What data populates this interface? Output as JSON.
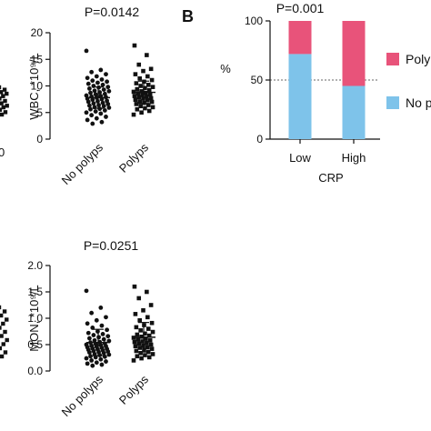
{
  "colors": {
    "ink": "#111111",
    "gridline": "#666666",
    "polyps": "#e8537a",
    "no_polyps": "#7ec3ea"
  },
  "panel_b": {
    "letter": "B"
  },
  "chart_data": [
    {
      "type": "scatter",
      "panel": "partial-left-top",
      "ylabel_fragment": "",
      "tick_labels": [
        "0"
      ],
      "points_y": [
        9.4,
        9.1,
        8.8,
        8.6,
        8.3,
        8.0,
        7.7,
        7.4,
        7.1,
        6.9,
        6.6,
        6.3,
        6.0
      ]
    },
    {
      "type": "scatter",
      "title": "P=0.0142",
      "ylabel": "WBC, *10⁹/L",
      "categories": [
        "No polyps",
        "Polyps"
      ],
      "ylim": [
        0,
        20
      ],
      "yticks": [
        "0",
        "5",
        "10",
        "15",
        "20"
      ],
      "summary": {
        "No polyps": {
          "mean": 7.8,
          "sd": 2.0
        },
        "Polyps": {
          "mean": 8.8,
          "sd": 2.1
        }
      },
      "series": [
        {
          "name": "No polyps",
          "marker": "circle",
          "values": [
            16.6,
            13.0,
            12.6,
            12.2,
            11.8,
            11.5,
            11.2,
            11.0,
            10.8,
            10.6,
            10.4,
            10.2,
            10.0,
            9.8,
            9.7,
            9.5,
            9.3,
            9.1,
            9.0,
            8.8,
            8.7,
            8.5,
            8.4,
            8.2,
            8.1,
            8.0,
            7.9,
            7.8,
            7.6,
            7.5,
            7.4,
            7.2,
            7.1,
            7.0,
            6.8,
            6.7,
            6.6,
            6.4,
            6.3,
            6.2,
            6.0,
            5.9,
            5.7,
            5.6,
            5.4,
            5.2,
            5.0,
            4.8,
            4.5,
            4.2,
            3.9,
            3.6,
            3.2,
            2.9
          ]
        },
        {
          "name": "Polyps",
          "marker": "square",
          "values": [
            17.6,
            15.8,
            14.0,
            13.2,
            12.8,
            12.2,
            11.8,
            11.4,
            11.1,
            10.8,
            10.5,
            10.2,
            10.0,
            9.8,
            9.6,
            9.4,
            9.2,
            9.0,
            8.9,
            8.7,
            8.6,
            8.4,
            8.3,
            8.1,
            8.0,
            7.9,
            7.7,
            7.6,
            7.4,
            7.3,
            7.1,
            7.0,
            6.8,
            6.6,
            6.4,
            6.2,
            6.0,
            5.8,
            5.6,
            5.3,
            5.0,
            4.6
          ]
        }
      ]
    },
    {
      "type": "bar",
      "stacked": true,
      "title": "P=0.001",
      "ylabel": "%",
      "xlabel": "CRP",
      "categories": [
        "Low",
        "High"
      ],
      "ylim": [
        0,
        100
      ],
      "yticks": [
        "0",
        "50",
        "100"
      ],
      "grid": "dashed at 50",
      "series": [
        {
          "name": "No p",
          "legend_label": "No p",
          "values": [
            72,
            45
          ]
        },
        {
          "name": "Polyp",
          "legend_label": "Polyp",
          "values": [
            28,
            55
          ]
        }
      ],
      "legend_position": "right"
    },
    {
      "type": "scatter",
      "panel": "partial-left-bottom",
      "tick_labels": [],
      "points_y": [
        1.0,
        0.95,
        0.9,
        0.85,
        0.8,
        0.75,
        0.7,
        0.65,
        0.6,
        0.55,
        0.5,
        0.45,
        0.4
      ]
    },
    {
      "type": "scatter",
      "title": "P=0.0251",
      "ylabel": "MON, *10⁹/L",
      "categories": [
        "No polyps",
        "Polyps"
      ],
      "ylim": [
        0,
        2.0
      ],
      "yticks": [
        "0.0",
        "0.5",
        "1.0",
        "1.5",
        "2.0"
      ],
      "summary": {
        "No polyps": {
          "mean": 0.54,
          "sd": 0.25
        },
        "Polyps": {
          "mean": 0.64,
          "sd": 0.28
        }
      },
      "series": [
        {
          "name": "No polyps",
          "marker": "circle",
          "values": [
            1.52,
            1.2,
            1.1,
            1.02,
            0.96,
            0.9,
            0.86,
            0.82,
            0.78,
            0.75,
            0.72,
            0.7,
            0.68,
            0.66,
            0.64,
            0.62,
            0.6,
            0.58,
            0.57,
            0.55,
            0.54,
            0.52,
            0.51,
            0.5,
            0.49,
            0.48,
            0.47,
            0.46,
            0.45,
            0.44,
            0.43,
            0.42,
            0.41,
            0.4,
            0.39,
            0.38,
            0.37,
            0.36,
            0.35,
            0.34,
            0.32,
            0.31,
            0.3,
            0.28,
            0.27,
            0.26,
            0.24,
            0.22,
            0.2,
            0.18,
            0.16,
            0.14,
            0.12,
            0.1
          ]
        },
        {
          "name": "Polyps",
          "marker": "square",
          "values": [
            1.6,
            1.5,
            1.38,
            1.25,
            1.15,
            1.08,
            1.02,
            0.96,
            0.91,
            0.87,
            0.83,
            0.8,
            0.77,
            0.74,
            0.71,
            0.69,
            0.67,
            0.65,
            0.63,
            0.61,
            0.6,
            0.58,
            0.56,
            0.55,
            0.53,
            0.52,
            0.5,
            0.48,
            0.47,
            0.45,
            0.44,
            0.42,
            0.4,
            0.38,
            0.36,
            0.34,
            0.32,
            0.3,
            0.28,
            0.26,
            0.24,
            0.2
          ]
        }
      ]
    }
  ]
}
